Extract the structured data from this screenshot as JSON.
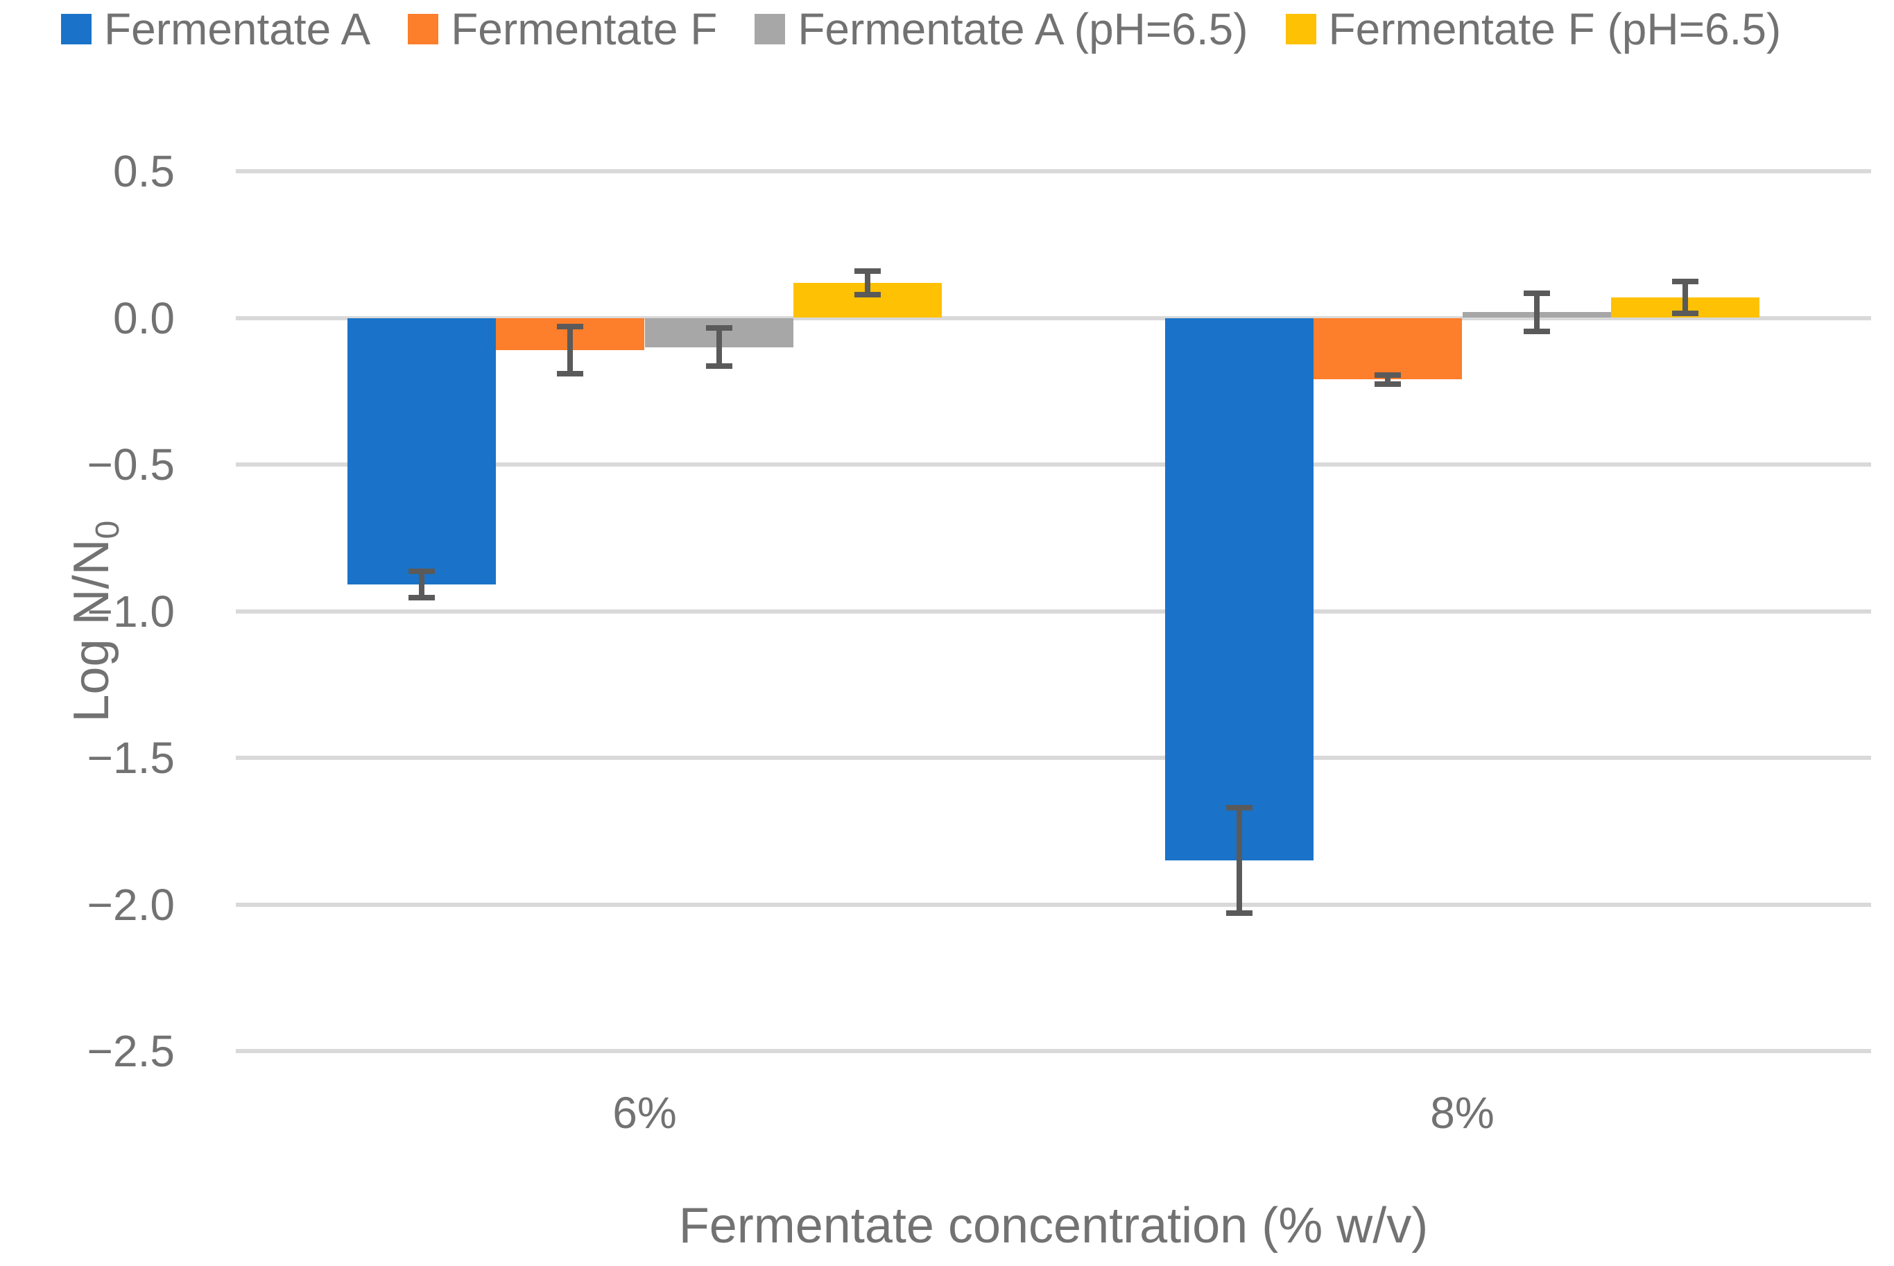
{
  "chart_data": {
    "type": "bar",
    "title": "",
    "categories": [
      "6%",
      "8%"
    ],
    "series": [
      {
        "name": "Fermentate A",
        "color": "#1A73C8",
        "values": [
          -0.91,
          -1.85
        ],
        "errors": [
          0.045,
          0.18
        ]
      },
      {
        "name": "Fermentate F",
        "color": "#FD7E2B",
        "values": [
          -0.11,
          -0.21
        ],
        "errors": [
          0.08,
          0.015
        ]
      },
      {
        "name": "Fermentate A (pH=6.5)",
        "color": "#A7A7A7",
        "values": [
          -0.1,
          0.02
        ],
        "errors": [
          0.065,
          0.065
        ]
      },
      {
        "name": "Fermentate F (pH=6.5)",
        "color": "#FFC104",
        "values": [
          0.12,
          0.07
        ],
        "errors": [
          0.04,
          0.055
        ]
      }
    ],
    "xlabel": "Fermentate concentration (% w/v)",
    "ylabel": "Log N/N",
    "ylabel_sub": "0",
    "ylim": [
      -2.5,
      0.5
    ],
    "ytick_values": [
      0.5,
      0.0,
      -0.5,
      -1.0,
      -1.5,
      -2.0,
      -2.5
    ],
    "ytick_labels": [
      "0.5",
      "0.0",
      "−0.5",
      "−1.0",
      "−1.5",
      "−2.0",
      "−2.5"
    ],
    "legend_position": "top",
    "grid": true,
    "style": {
      "grid_color": "#D9D9D9",
      "error_bar_color": "#5A5A5A",
      "text_color": "#727272",
      "background": "#FFFFFF"
    }
  }
}
